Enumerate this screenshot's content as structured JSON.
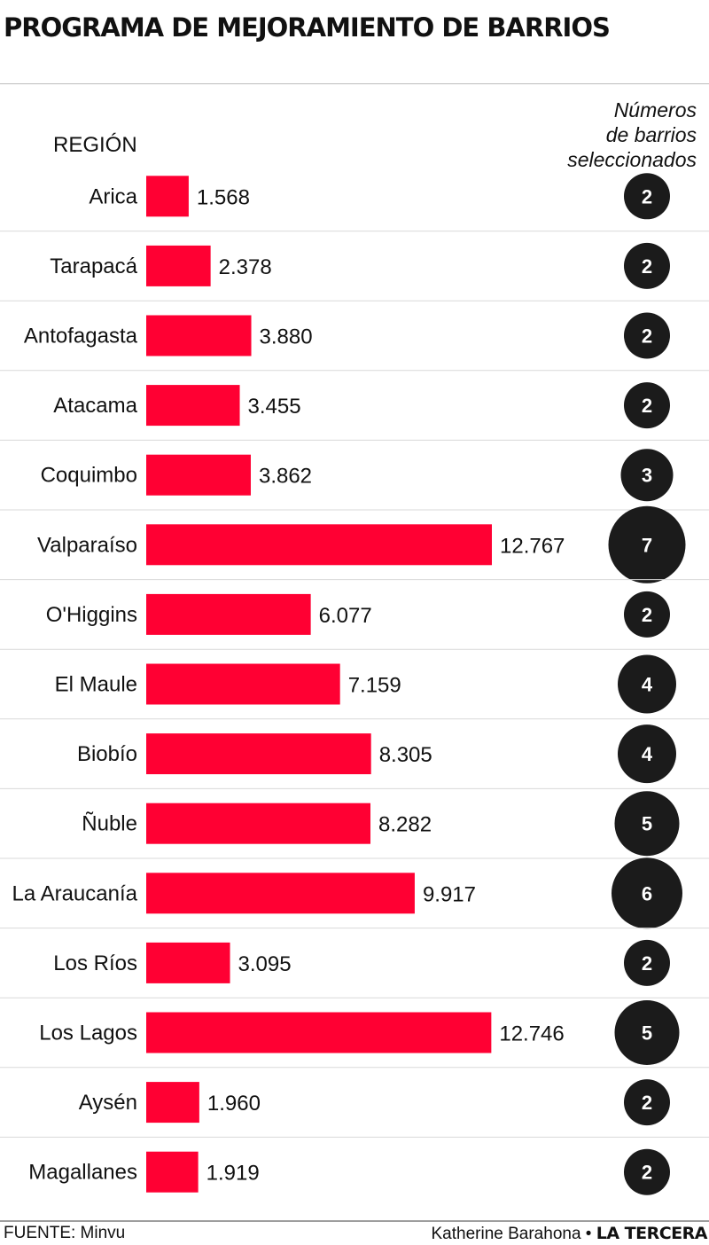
{
  "header": {
    "title": "PROGRAMA DE MEJORAMIENTO DE BARRIOS",
    "region_label": "REGIÓN",
    "count_label_lines": [
      "Números",
      "de barrios",
      "seleccionados"
    ]
  },
  "footer": {
    "source": "FUENTE: Minvu",
    "author": "Katherine Barahona",
    "separator": "•",
    "brand": "LA TERCERA"
  },
  "colors": {
    "bar": "#ff0033",
    "circle": "#1b1b1b",
    "row_divider": "#d9d9d9"
  },
  "chart_data": {
    "type": "bar",
    "orientation": "horizontal",
    "title": "PROGRAMA DE MEJORAMIENTO DE BARRIOS",
    "categories": [
      "Arica",
      "Tarapacá",
      "Antofagasta",
      "Atacama",
      "Coquimbo",
      "Valparaíso",
      "O'Higgins",
      "El Maule",
      "Biobío",
      "Ñuble",
      "La Araucanía",
      "Los Ríos",
      "Los Lagos",
      "Aysén",
      "Magallanes"
    ],
    "values": [
      1568,
      2378,
      3880,
      3455,
      3862,
      12767,
      6077,
      7159,
      8305,
      8282,
      9917,
      3095,
      12746,
      1960,
      1919
    ],
    "value_labels": [
      "1.568",
      "2.378",
      "3.880",
      "3.455",
      "3.862",
      "12.767",
      "6.077",
      "7.159",
      "8.305",
      "8.282",
      "9.917",
      "3.095",
      "12.746",
      "1.960",
      "1.919"
    ],
    "barrios_seleccionados": [
      2,
      2,
      2,
      2,
      3,
      7,
      2,
      4,
      4,
      5,
      6,
      2,
      5,
      2,
      2
    ],
    "xlim": [
      0,
      12767
    ],
    "grid": false,
    "legend": "none"
  }
}
